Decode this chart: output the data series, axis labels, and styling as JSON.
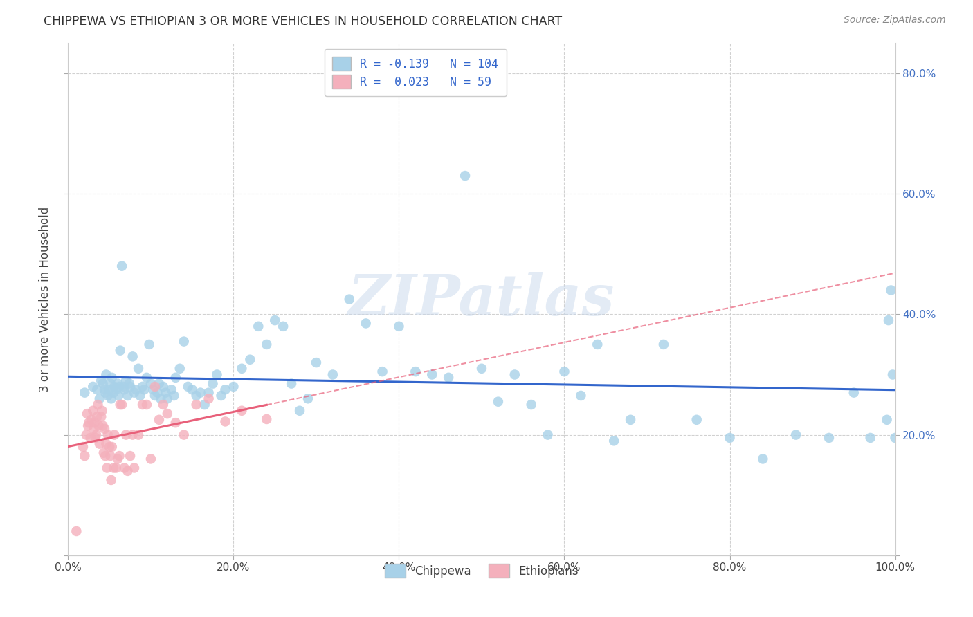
{
  "title": "CHIPPEWA VS ETHIOPIAN 3 OR MORE VEHICLES IN HOUSEHOLD CORRELATION CHART",
  "source": "Source: ZipAtlas.com",
  "ylabel": "3 or more Vehicles in Household",
  "xlim": [
    0.0,
    1.0
  ],
  "ylim": [
    0.0,
    0.85
  ],
  "x_ticks": [
    0.0,
    0.2,
    0.4,
    0.6,
    0.8,
    1.0
  ],
  "x_tick_labels": [
    "0.0%",
    "20.0%",
    "40.0%",
    "60.0%",
    "80.0%",
    "100.0%"
  ],
  "y_ticks": [
    0.0,
    0.2,
    0.4,
    0.6,
    0.8
  ],
  "y_tick_labels": [
    "",
    "20.0%",
    "40.0%",
    "60.0%",
    "80.0%"
  ],
  "chippewa_R": -0.139,
  "chippewa_N": 104,
  "ethiopian_R": 0.023,
  "ethiopian_N": 59,
  "chippewa_color": "#a8d1e8",
  "ethiopian_color": "#f4b0bc",
  "chippewa_line_color": "#3366cc",
  "ethiopian_line_color": "#e8607a",
  "watermark": "ZIPatlas",
  "legend_labels": [
    "Chippewa",
    "Ethiopians"
  ],
  "chippewa_x": [
    0.02,
    0.03,
    0.035,
    0.038,
    0.04,
    0.042,
    0.044,
    0.045,
    0.046,
    0.048,
    0.05,
    0.051,
    0.052,
    0.053,
    0.055,
    0.056,
    0.058,
    0.06,
    0.061,
    0.062,
    0.063,
    0.065,
    0.067,
    0.068,
    0.07,
    0.072,
    0.074,
    0.075,
    0.078,
    0.08,
    0.082,
    0.085,
    0.087,
    0.09,
    0.092,
    0.095,
    0.098,
    0.1,
    0.103,
    0.105,
    0.108,
    0.11,
    0.112,
    0.115,
    0.118,
    0.12,
    0.125,
    0.128,
    0.13,
    0.135,
    0.14,
    0.145,
    0.15,
    0.155,
    0.16,
    0.165,
    0.17,
    0.175,
    0.18,
    0.185,
    0.19,
    0.2,
    0.21,
    0.22,
    0.23,
    0.24,
    0.25,
    0.26,
    0.27,
    0.28,
    0.29,
    0.3,
    0.32,
    0.34,
    0.36,
    0.38,
    0.4,
    0.42,
    0.44,
    0.46,
    0.48,
    0.5,
    0.52,
    0.54,
    0.56,
    0.58,
    0.6,
    0.62,
    0.64,
    0.66,
    0.68,
    0.72,
    0.76,
    0.8,
    0.84,
    0.88,
    0.92,
    0.95,
    0.97,
    0.99,
    0.992,
    0.995,
    0.997,
    1.0
  ],
  "chippewa_y": [
    0.27,
    0.28,
    0.275,
    0.26,
    0.29,
    0.285,
    0.275,
    0.27,
    0.3,
    0.265,
    0.275,
    0.285,
    0.26,
    0.295,
    0.27,
    0.28,
    0.275,
    0.285,
    0.265,
    0.28,
    0.34,
    0.48,
    0.28,
    0.275,
    0.29,
    0.265,
    0.285,
    0.28,
    0.33,
    0.27,
    0.275,
    0.31,
    0.265,
    0.28,
    0.275,
    0.295,
    0.35,
    0.285,
    0.275,
    0.265,
    0.27,
    0.285,
    0.26,
    0.28,
    0.27,
    0.26,
    0.275,
    0.265,
    0.295,
    0.31,
    0.355,
    0.28,
    0.275,
    0.265,
    0.27,
    0.25,
    0.27,
    0.285,
    0.3,
    0.265,
    0.275,
    0.28,
    0.31,
    0.325,
    0.38,
    0.35,
    0.39,
    0.38,
    0.285,
    0.24,
    0.26,
    0.32,
    0.3,
    0.425,
    0.385,
    0.305,
    0.38,
    0.305,
    0.3,
    0.295,
    0.63,
    0.31,
    0.255,
    0.3,
    0.25,
    0.2,
    0.305,
    0.265,
    0.35,
    0.19,
    0.225,
    0.35,
    0.225,
    0.195,
    0.16,
    0.2,
    0.195,
    0.27,
    0.195,
    0.225,
    0.39,
    0.44,
    0.3,
    0.195
  ],
  "ethiopian_x": [
    0.01,
    0.018,
    0.02,
    0.022,
    0.023,
    0.024,
    0.025,
    0.027,
    0.028,
    0.03,
    0.031,
    0.032,
    0.033,
    0.034,
    0.035,
    0.036,
    0.037,
    0.038,
    0.04,
    0.041,
    0.042,
    0.043,
    0.044,
    0.045,
    0.046,
    0.047,
    0.048,
    0.05,
    0.051,
    0.052,
    0.053,
    0.055,
    0.056,
    0.058,
    0.06,
    0.062,
    0.063,
    0.065,
    0.068,
    0.07,
    0.072,
    0.075,
    0.078,
    0.08,
    0.085,
    0.09,
    0.095,
    0.1,
    0.105,
    0.11,
    0.115,
    0.12,
    0.13,
    0.14,
    0.155,
    0.17,
    0.19,
    0.21,
    0.24
  ],
  "ethiopian_y": [
    0.04,
    0.18,
    0.165,
    0.2,
    0.235,
    0.215,
    0.22,
    0.195,
    0.225,
    0.24,
    0.21,
    0.22,
    0.195,
    0.2,
    0.23,
    0.25,
    0.215,
    0.185,
    0.23,
    0.24,
    0.215,
    0.17,
    0.21,
    0.165,
    0.185,
    0.145,
    0.2,
    0.18,
    0.165,
    0.125,
    0.18,
    0.145,
    0.2,
    0.145,
    0.16,
    0.165,
    0.25,
    0.25,
    0.145,
    0.2,
    0.14,
    0.165,
    0.2,
    0.145,
    0.2,
    0.25,
    0.25,
    0.16,
    0.28,
    0.225,
    0.25,
    0.235,
    0.22,
    0.2,
    0.25,
    0.26,
    0.222,
    0.24,
    0.226
  ]
}
